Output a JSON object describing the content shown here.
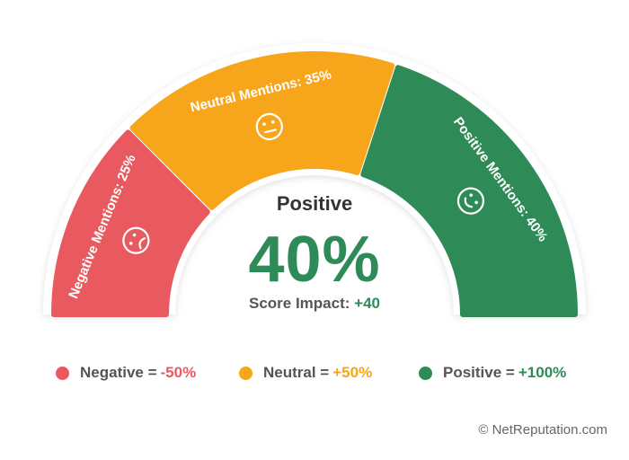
{
  "chart_data": {
    "type": "pie",
    "style": "semicircle-gauge",
    "segments": [
      {
        "name": "Negative",
        "label": "Negative Mentions: 25%",
        "value": 25,
        "color": "#e85a5f",
        "face": "sad-face-icon"
      },
      {
        "name": "Neutral",
        "label": "Neutral Mentions: 35%",
        "value": 35,
        "color": "#f7a61b",
        "face": "neutral-face-icon"
      },
      {
        "name": "Positive",
        "label": "Positive Mentions: 40%",
        "value": 40,
        "color": "#2e8b57",
        "face": "happy-face-icon"
      }
    ],
    "center": {
      "title": "Positive",
      "value": "40%",
      "impact_label": "Score Impact:",
      "impact_value": "+40"
    },
    "legend": [
      {
        "name": "Negative =",
        "effect": "-50%",
        "color": "#e85a5f",
        "effect_color": "#e85a5f"
      },
      {
        "name": "Neutral =",
        "effect": "+50%",
        "color": "#f7a61b",
        "effect_color": "#f7a61b"
      },
      {
        "name": "Positive =",
        "effect": "+100%",
        "color": "#2e8b57",
        "effect_color": "#2e8b57"
      }
    ],
    "legend_placement": "bottom"
  },
  "credit": "© NetReputation.com"
}
